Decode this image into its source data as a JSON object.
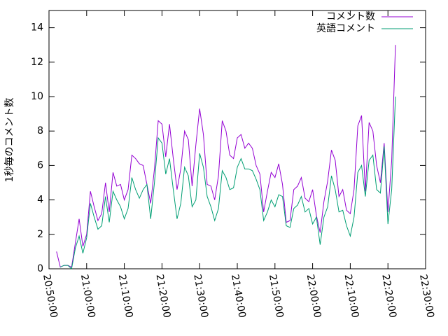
{
  "chart_data": {
    "type": "line",
    "ylabel": "1秒毎のコメント数",
    "x": [
      "20:52:00",
      "20:53:00",
      "20:54:00",
      "20:55:00",
      "20:56:00",
      "20:57:00",
      "20:58:00",
      "20:59:00",
      "21:00:00",
      "21:01:00",
      "21:02:00",
      "21:03:00",
      "21:04:00",
      "21:05:00",
      "21:06:00",
      "21:07:00",
      "21:08:00",
      "21:09:00",
      "21:10:00",
      "21:11:00",
      "21:12:00",
      "21:13:00",
      "21:14:00",
      "21:15:00",
      "21:16:00",
      "21:17:00",
      "21:18:00",
      "21:19:00",
      "21:20:00",
      "21:21:00",
      "21:22:00",
      "21:23:00",
      "21:24:00",
      "21:25:00",
      "21:26:00",
      "21:27:00",
      "21:28:00",
      "21:29:00",
      "21:30:00",
      "21:31:00",
      "21:32:00",
      "21:33:00",
      "21:34:00",
      "21:35:00",
      "21:36:00",
      "21:37:00",
      "21:38:00",
      "21:39:00",
      "21:40:00",
      "21:41:00",
      "21:42:00",
      "21:43:00",
      "21:44:00",
      "21:45:00",
      "21:46:00",
      "21:47:00",
      "21:48:00",
      "21:49:00",
      "21:50:00",
      "21:51:00",
      "21:52:00",
      "21:53:00",
      "21:54:00",
      "21:55:00",
      "21:56:00",
      "21:57:00",
      "21:58:00",
      "21:59:00",
      "22:00:00",
      "22:01:00",
      "22:02:00",
      "22:03:00",
      "22:04:00",
      "22:05:00",
      "22:06:00",
      "22:07:00",
      "22:08:00",
      "22:09:00",
      "22:10:00",
      "22:11:00",
      "22:12:00",
      "22:13:00",
      "22:14:00",
      "22:15:00",
      "22:16:00",
      "22:17:00",
      "22:18:00",
      "22:19:00",
      "22:20:00",
      "22:21:00",
      "22:22:00"
    ],
    "series": [
      {
        "name": "コメント数",
        "color": "#9400d3",
        "values": [
          1.0,
          0.1,
          0.2,
          0.2,
          0.1,
          1.5,
          2.9,
          1.3,
          2.0,
          4.5,
          3.6,
          2.8,
          3.2,
          5.0,
          3.3,
          5.6,
          4.8,
          4.9,
          4.0,
          4.6,
          6.6,
          6.4,
          6.1,
          6.0,
          4.9,
          3.8,
          5.8,
          8.6,
          8.4,
          6.5,
          8.4,
          6.4,
          4.6,
          5.8,
          8.0,
          7.5,
          4.8,
          7.2,
          9.3,
          7.8,
          4.9,
          4.8,
          4.0,
          5.4,
          8.6,
          8.0,
          6.6,
          6.4,
          7.6,
          7.8,
          7.0,
          7.3,
          7.0,
          6.0,
          5.5,
          3.3,
          4.5,
          5.6,
          5.3,
          6.1,
          4.9,
          2.7,
          2.8,
          4.6,
          4.8,
          5.3,
          4.1,
          3.9,
          4.6,
          3.1,
          2.1,
          3.9,
          5.1,
          6.9,
          6.3,
          4.2,
          4.6,
          3.4,
          3.2,
          4.6,
          8.3,
          8.9,
          4.5,
          8.5,
          8.0,
          6.0,
          5.0,
          7.3,
          3.3,
          6.3,
          13.0
        ]
      },
      {
        "name": "英語コメント",
        "color": "#009e73",
        "values": [
          null,
          0.1,
          0.2,
          0.2,
          0.0,
          1.2,
          1.9,
          0.9,
          1.8,
          3.8,
          3.0,
          2.3,
          2.5,
          4.2,
          2.7,
          4.5,
          4.0,
          3.6,
          2.9,
          3.5,
          5.3,
          4.6,
          4.1,
          4.6,
          4.9,
          2.9,
          5.0,
          7.6,
          7.3,
          5.5,
          6.4,
          4.6,
          2.9,
          3.8,
          5.9,
          5.4,
          3.6,
          4.0,
          6.7,
          5.9,
          4.2,
          3.6,
          2.8,
          3.5,
          5.7,
          5.3,
          4.6,
          4.7,
          5.9,
          6.4,
          5.8,
          5.8,
          5.7,
          5.2,
          4.6,
          2.8,
          3.3,
          4.0,
          3.6,
          4.3,
          4.2,
          2.5,
          2.4,
          3.5,
          3.7,
          4.2,
          3.3,
          3.5,
          2.6,
          3.0,
          1.4,
          3.0,
          3.6,
          5.4,
          4.6,
          3.3,
          3.4,
          2.5,
          1.9,
          3.0,
          5.6,
          6.0,
          4.2,
          6.3,
          6.6,
          4.6,
          4.4,
          7.1,
          2.6,
          4.6,
          10.0
        ]
      }
    ],
    "xlim": [
      "20:50:00",
      "22:30:00"
    ],
    "xticks": [
      "20:50:00",
      "21:00:00",
      "21:10:00",
      "21:20:00",
      "21:30:00",
      "21:40:00",
      "21:50:00",
      "22:00:00",
      "22:10:00",
      "22:20:00",
      "22:30:00"
    ],
    "ylim": [
      0,
      15
    ],
    "yticks": [
      0,
      2,
      4,
      6,
      8,
      10,
      12,
      14
    ],
    "legend": "top right"
  }
}
